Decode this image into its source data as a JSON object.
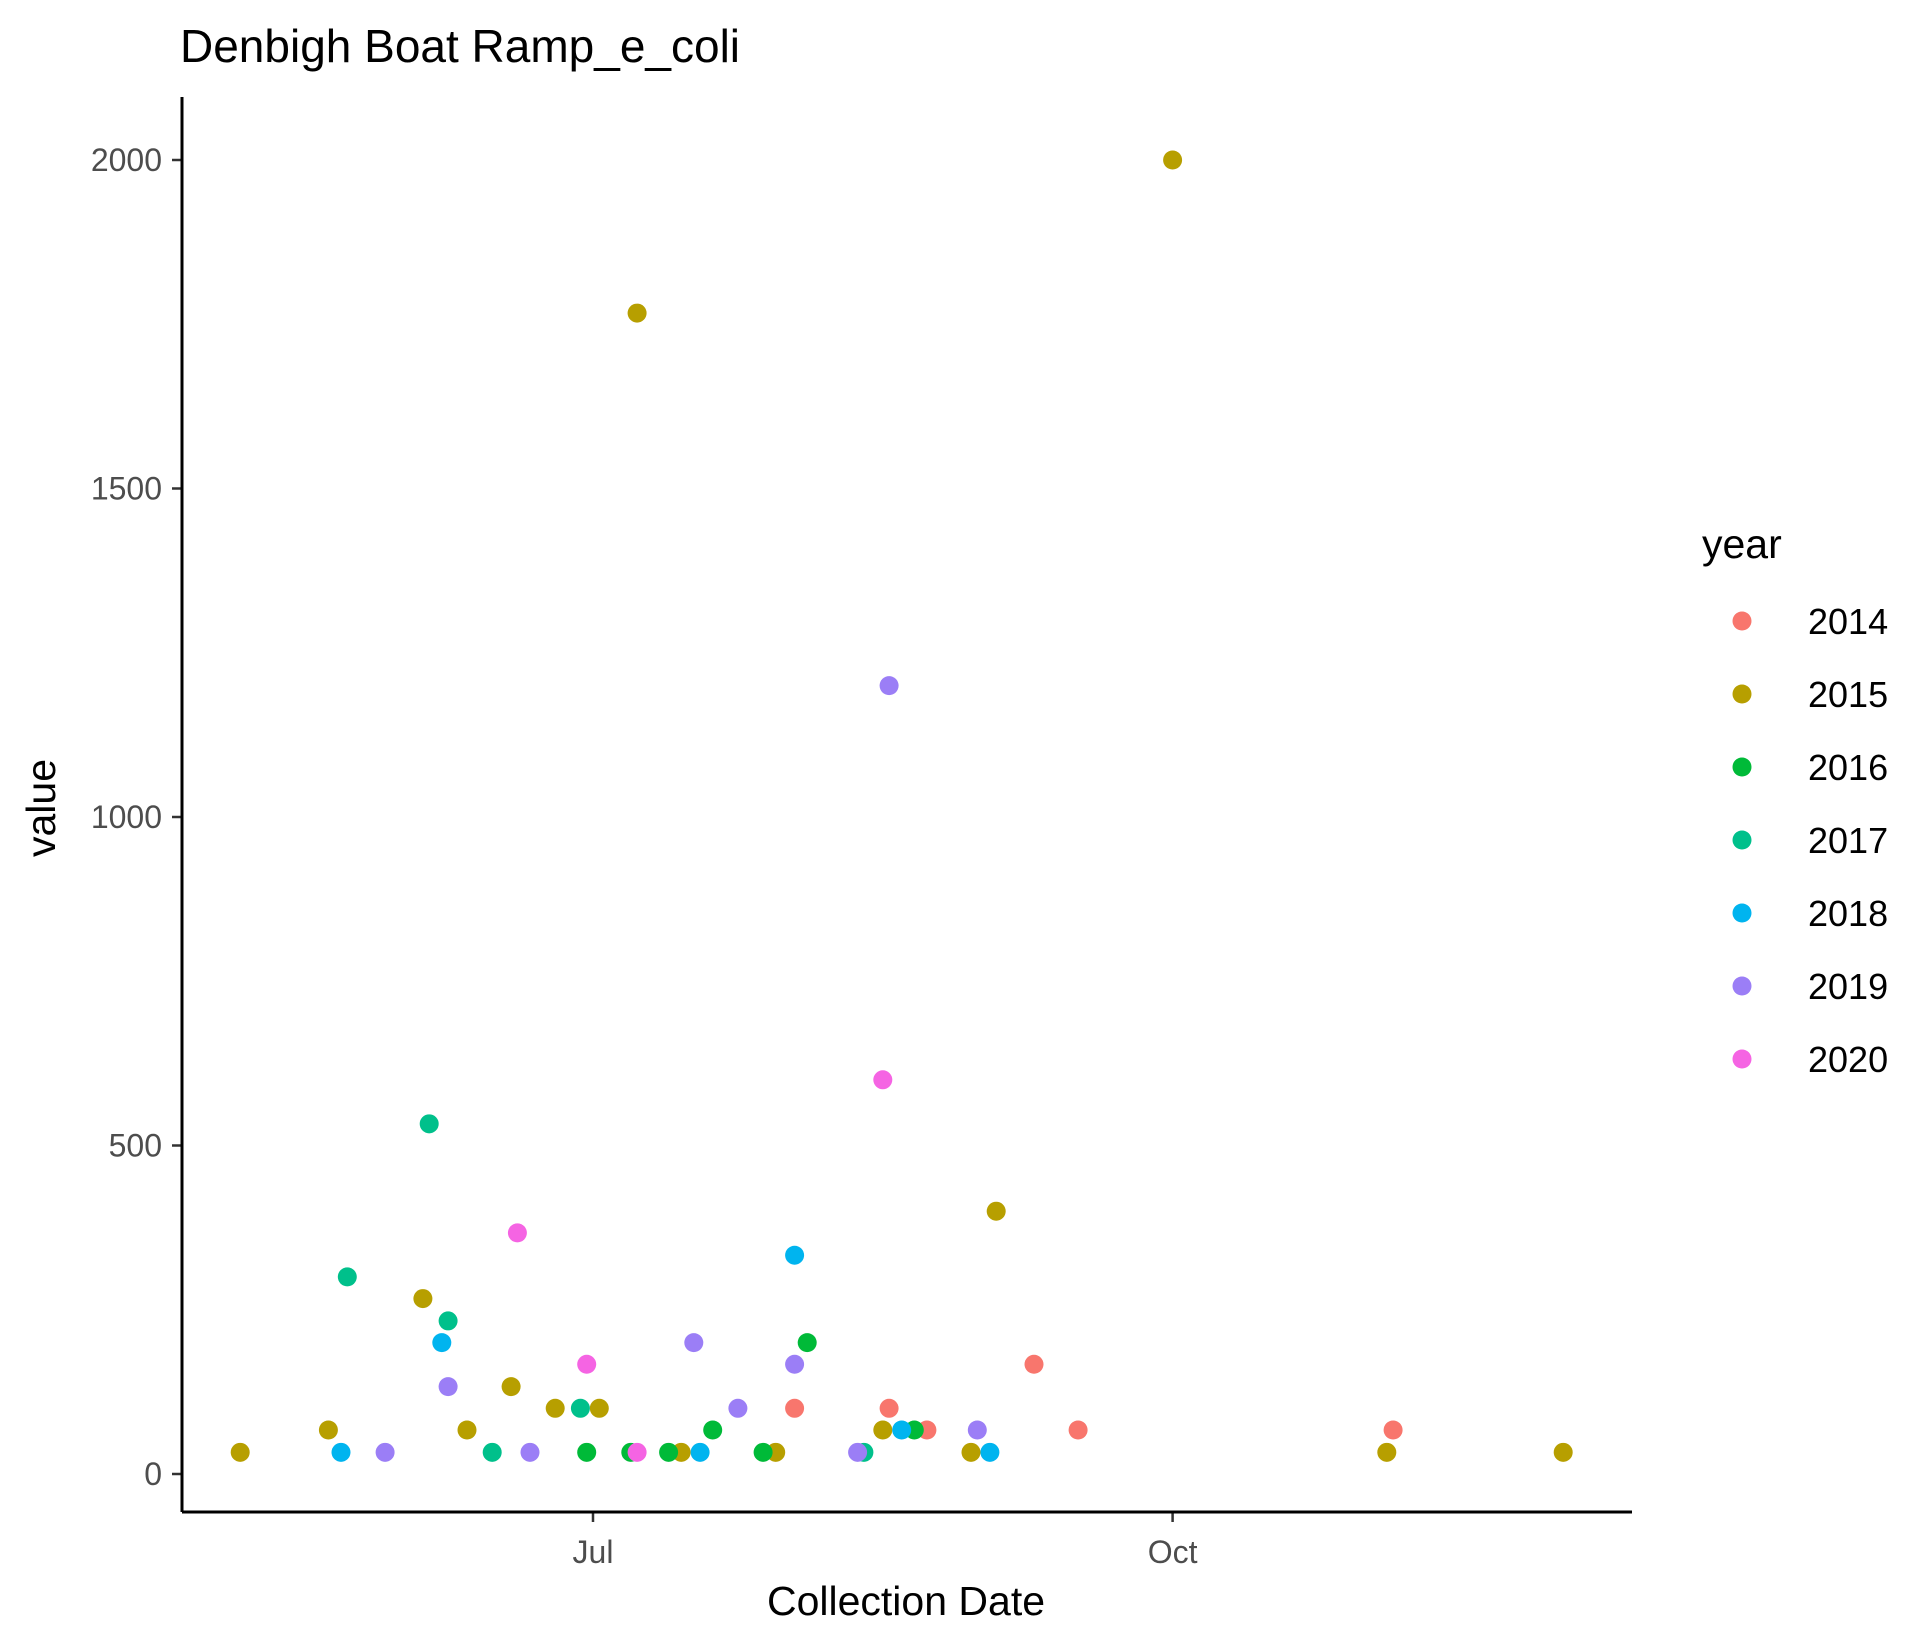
{
  "chart_data": {
    "type": "scatter",
    "title": "Denbigh Boat Ramp_e_coli",
    "xlabel": "Collection Date",
    "ylabel": "value",
    "x_ticks": [
      "Jul",
      "Oct"
    ],
    "y_ticks": [
      "0",
      "500",
      "1000",
      "1500",
      "2000"
    ],
    "ylim": [
      -65,
      2110
    ],
    "grid": false,
    "legend": {
      "title": "year",
      "position": "right"
    },
    "series": [
      {
        "name": "2014",
        "color": "#F8766D",
        "points": [
          {
            "x": "Aug 02",
            "y": 100
          },
          {
            "x": "Aug 17",
            "y": 100
          },
          {
            "x": "Aug 23",
            "y": 67
          },
          {
            "x": "Sep 09",
            "y": 167
          },
          {
            "x": "Sep 16",
            "y": 67
          },
          {
            "x": "Nov 05",
            "y": 67
          }
        ]
      },
      {
        "name": "2015",
        "color": "#B79F00",
        "points": [
          {
            "x": "May 06",
            "y": 33
          },
          {
            "x": "May 20",
            "y": 67
          },
          {
            "x": "Jun 04",
            "y": 267
          },
          {
            "x": "Jun 11",
            "y": 67
          },
          {
            "x": "Jun 18",
            "y": 133
          },
          {
            "x": "Jun 25",
            "y": 100
          },
          {
            "x": "Jul 02",
            "y": 100
          },
          {
            "x": "Jul 08",
            "y": 1767
          },
          {
            "x": "Jul 15",
            "y": 33
          },
          {
            "x": "Jul 30",
            "y": 33
          },
          {
            "x": "Aug 16",
            "y": 67
          },
          {
            "x": "Aug 30",
            "y": 33
          },
          {
            "x": "Sep 03",
            "y": 400
          },
          {
            "x": "Oct 01",
            "y": 2000
          },
          {
            "x": "Nov 04",
            "y": 33
          },
          {
            "x": "Dec 02",
            "y": 33
          }
        ]
      },
      {
        "name": "2016",
        "color": "#00BA38",
        "points": [
          {
            "x": "Jun 30",
            "y": 33
          },
          {
            "x": "Jul 07",
            "y": 33
          },
          {
            "x": "Jul 13",
            "y": 33
          },
          {
            "x": "Jul 20",
            "y": 67
          },
          {
            "x": "Jul 28",
            "y": 33
          },
          {
            "x": "Aug 04",
            "y": 200
          },
          {
            "x": "Aug 21",
            "y": 67
          }
        ]
      },
      {
        "name": "2017",
        "color": "#00C08B",
        "points": [
          {
            "x": "May 23",
            "y": 300
          },
          {
            "x": "Jun 05",
            "y": 533
          },
          {
            "x": "Jun 08",
            "y": 233
          },
          {
            "x": "Jun 15",
            "y": 33
          },
          {
            "x": "Jun 29",
            "y": 100
          },
          {
            "x": "Aug 13",
            "y": 33
          }
        ]
      },
      {
        "name": "2018",
        "color": "#00B4EF",
        "points": [
          {
            "x": "May 22",
            "y": 33
          },
          {
            "x": "Jun 07",
            "y": 200
          },
          {
            "x": "Jul 18",
            "y": 33
          },
          {
            "x": "Aug 02",
            "y": 333
          },
          {
            "x": "Aug 19",
            "y": 67
          },
          {
            "x": "Sep 02",
            "y": 33
          }
        ]
      },
      {
        "name": "2019",
        "color": "#9B7EF6",
        "points": [
          {
            "x": "May 29",
            "y": 33
          },
          {
            "x": "Jun 08",
            "y": 133
          },
          {
            "x": "Jun 21",
            "y": 33
          },
          {
            "x": "Jul 17",
            "y": 200
          },
          {
            "x": "Jul 24",
            "y": 100
          },
          {
            "x": "Aug 02",
            "y": 167
          },
          {
            "x": "Aug 12",
            "y": 33
          },
          {
            "x": "Aug 17",
            "y": 1200
          },
          {
            "x": "Aug 31",
            "y": 67
          }
        ]
      },
      {
        "name": "2020",
        "color": "#F564E3",
        "points": [
          {
            "x": "Jun 19",
            "y": 367
          },
          {
            "x": "Jun 30",
            "y": 167
          },
          {
            "x": "Jul 08",
            "y": 33
          },
          {
            "x": "Aug 16",
            "y": 600
          }
        ]
      }
    ]
  }
}
